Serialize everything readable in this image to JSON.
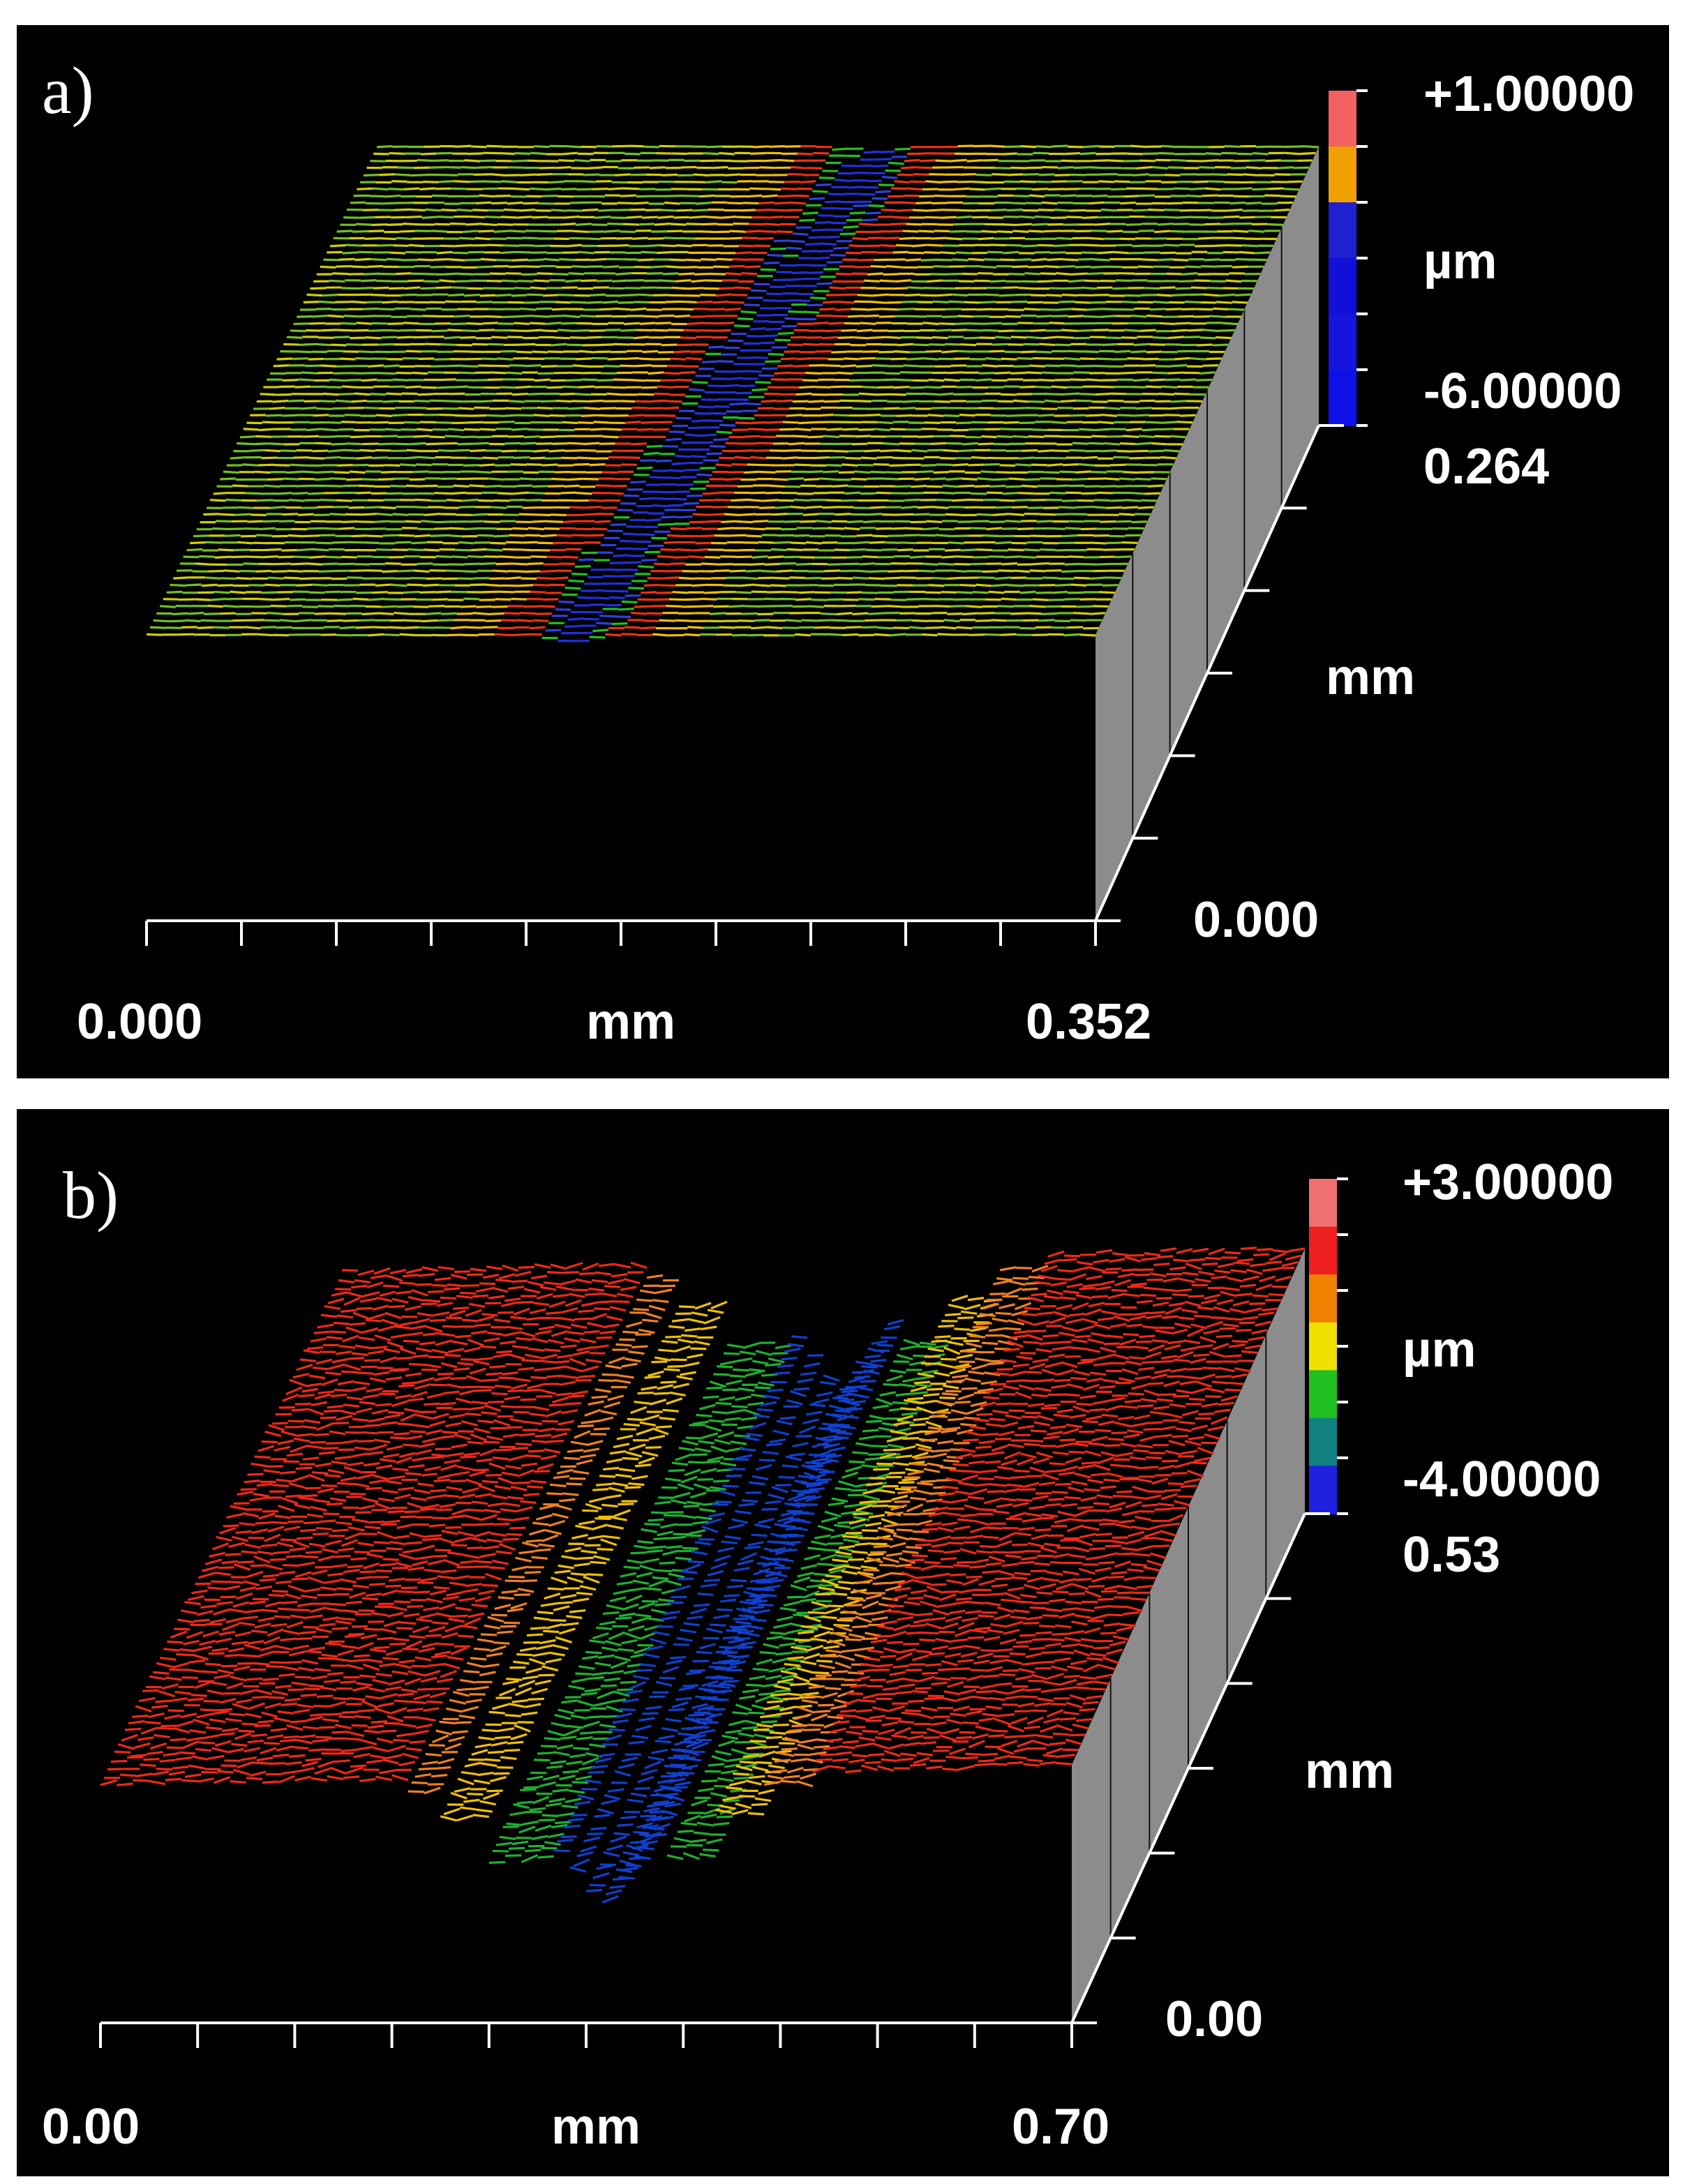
{
  "panels": [
    {
      "label": "a)",
      "scale_max": "+1.00000",
      "scale_unit": "µm",
      "scale_min": "-6.00000",
      "depth_max": "0.264",
      "depth_unit": "mm",
      "depth_min": "0.000",
      "x_min": "0.000",
      "x_unit": "mm",
      "x_max": "0.352"
    },
    {
      "label": "b)",
      "scale_max": "+3.00000",
      "scale_unit": "µm",
      "scale_min": "-4.00000",
      "depth_max": "0.53",
      "depth_unit": "mm",
      "depth_min": "0.00",
      "x_min": "0.00",
      "x_unit": "mm",
      "x_max": "0.70"
    }
  ]
}
